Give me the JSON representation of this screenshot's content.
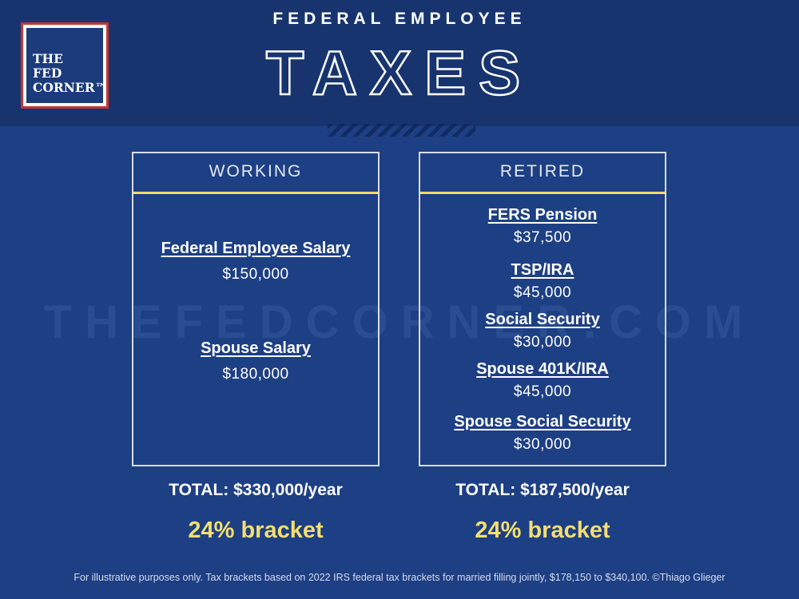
{
  "logo": {
    "lines": [
      "THE",
      "FED",
      "CORNER™"
    ]
  },
  "header": {
    "eyebrow": "FEDERAL EMPLOYEE",
    "title": "TAXES"
  },
  "watermark": "THEFEDCORNER.COM",
  "working": {
    "heading": "WORKING",
    "items": [
      {
        "label": "Federal Employee Salary",
        "value": "$150,000"
      },
      {
        "label": "Spouse Salary",
        "value": "$180,000"
      }
    ],
    "total": "TOTAL: $330,000/year",
    "bracket": "24% bracket"
  },
  "retired": {
    "heading": "RETIRED",
    "items": [
      {
        "label": "FERS Pension",
        "value": "$37,500"
      },
      {
        "label": "TSP/IRA",
        "value": "$45,000"
      },
      {
        "label": "Social Security",
        "value": "$30,000"
      },
      {
        "label": "Spouse 401K/IRA",
        "value": "$45,000"
      },
      {
        "label": "Spouse Social Security",
        "value": "$30,000"
      }
    ],
    "total": "TOTAL: $187,500/year",
    "bracket": "24% bracket"
  },
  "footnote": "For illustrative purposes only. Tax brackets based on 2022 IRS federal tax brackets for married filling jointly, $178,150 to $340,100. ©Thiago Glieger",
  "colors": {
    "background": "#1d3f84",
    "header": "#17346f",
    "accent": "#f4de6f",
    "logo_border": "#c0392f"
  }
}
